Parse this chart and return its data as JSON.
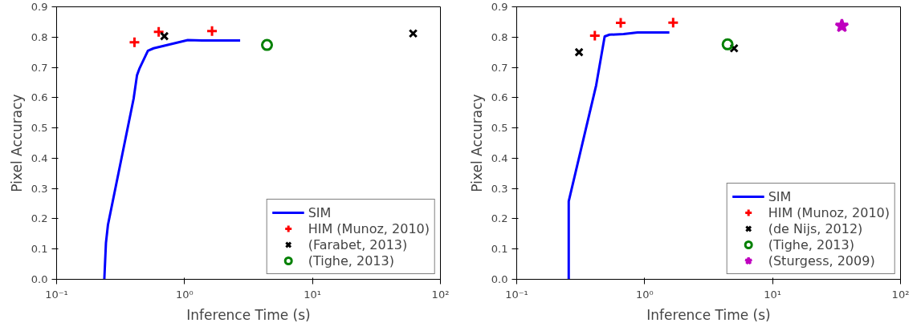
{
  "chart_data": [
    {
      "type": "scatter",
      "xlabel": "Inference Time (s)",
      "ylabel": "Pixel Accuracy",
      "log": "x",
      "xlim": [
        0.1,
        100
      ],
      "ylim": [
        0,
        0.9
      ],
      "xticks": [
        {
          "value": 0.1,
          "label": "10⁻¹"
        },
        {
          "value": 1,
          "label": "10⁰"
        },
        {
          "value": 10,
          "label": "10¹"
        },
        {
          "value": 100,
          "label": "10²"
        }
      ],
      "yticks": [
        {
          "value": 0,
          "label": "0.0"
        },
        {
          "value": 0.1,
          "label": "0.1"
        },
        {
          "value": 0.2,
          "label": "0.2"
        },
        {
          "value": 0.3,
          "label": "0.3"
        },
        {
          "value": 0.4,
          "label": "0.4"
        },
        {
          "value": 0.5,
          "label": "0.5"
        },
        {
          "value": 0.6,
          "label": "0.6"
        },
        {
          "value": 0.7,
          "label": "0.7"
        },
        {
          "value": 0.8,
          "label": "0.8"
        },
        {
          "value": 0.9,
          "label": "0.9"
        }
      ],
      "grid": false,
      "legend": "bottom right",
      "series": [
        {
          "name": "SIM",
          "type": "line",
          "marker": "none",
          "line_style": "solid",
          "color": "#0000ff",
          "x": [
            0.236,
            0.243,
            0.252,
            0.4,
            0.425,
            0.443,
            0.517,
            0.573,
            1.06,
            1.37,
            2.72
          ],
          "values": [
            0,
            0.12,
            0.18,
            0.597,
            0.674,
            0.695,
            0.755,
            0.763,
            0.79,
            0.789,
            0.789
          ]
        },
        {
          "name": "HIM (Munoz, 2010)",
          "marker": "plus",
          "color": "#ff0000",
          "x": [
            0.406,
            0.628,
            1.64
          ],
          "values": [
            0.783,
            0.817,
            0.82
          ]
        },
        {
          "name": "(Farabet, 2013)",
          "marker": "cross",
          "color": "#000000",
          "x": [
            0.695,
            61.2
          ],
          "values": [
            0.803,
            0.812
          ]
        },
        {
          "name": "(Tighe, 2013)",
          "marker": "circle",
          "color": "#008000",
          "x": [
            4.41
          ],
          "values": [
            0.774
          ]
        }
      ]
    },
    {
      "type": "scatter",
      "xlabel": "Inference Time (s)",
      "ylabel": "Pixel Accuracy",
      "log": "x",
      "xlim": [
        0.1,
        100
      ],
      "ylim": [
        0,
        0.9
      ],
      "xticks": [
        {
          "value": 0.1,
          "label": "10⁻¹"
        },
        {
          "value": 1,
          "label": "10⁰"
        },
        {
          "value": 10,
          "label": "10¹"
        },
        {
          "value": 100,
          "label": "10²"
        }
      ],
      "yticks": [
        {
          "value": 0,
          "label": "0.0"
        },
        {
          "value": 0.1,
          "label": "0.1"
        },
        {
          "value": 0.2,
          "label": "0.2"
        },
        {
          "value": 0.3,
          "label": "0.3"
        },
        {
          "value": 0.4,
          "label": "0.4"
        },
        {
          "value": 0.5,
          "label": "0.5"
        },
        {
          "value": 0.6,
          "label": "0.6"
        },
        {
          "value": 0.7,
          "label": "0.7"
        },
        {
          "value": 0.8,
          "label": "0.8"
        },
        {
          "value": 0.9,
          "label": "0.9"
        }
      ],
      "grid": false,
      "legend": "bottom right",
      "series": [
        {
          "name": "SIM",
          "type": "line",
          "marker": "none",
          "line_style": "solid",
          "color": "#0000ff",
          "x": [
            0.255,
            0.255,
            0.418,
            0.487,
            0.531,
            0.684,
            0.88,
            1.56
          ],
          "values": [
            0,
            0.258,
            0.641,
            0.802,
            0.808,
            0.81,
            0.815,
            0.815
          ]
        },
        {
          "name": "HIM (Munoz, 2010)",
          "marker": "plus",
          "color": "#ff0000",
          "x": [
            0.408,
            0.65,
            1.67
          ],
          "values": [
            0.805,
            0.847,
            0.848
          ]
        },
        {
          "name": "(de Nijs, 2012)",
          "marker": "cross",
          "color": "#000000",
          "x": [
            0.307,
            5.0
          ],
          "values": [
            0.75,
            0.763
          ]
        },
        {
          "name": "(Tighe, 2013)",
          "marker": "circle",
          "color": "#008000",
          "x": [
            4.45
          ],
          "values": [
            0.776
          ]
        },
        {
          "name": "(Sturgess, 2009)",
          "marker": "star",
          "color": "#bf00bf",
          "x": [
            34.8
          ],
          "values": [
            0.837
          ]
        }
      ]
    }
  ]
}
